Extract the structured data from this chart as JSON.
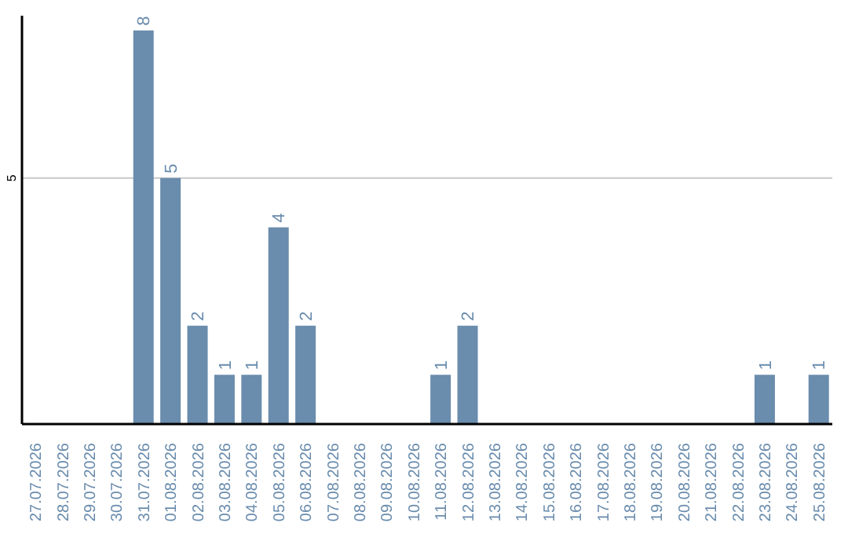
{
  "chart_data": {
    "type": "bar",
    "categories": [
      "27.07.2026",
      "28.07.2026",
      "29.07.2026",
      "30.07.2026",
      "31.07.2026",
      "01.08.2026",
      "02.08.2026",
      "03.08.2026",
      "04.08.2026",
      "05.08.2026",
      "06.08.2026",
      "07.08.2026",
      "08.08.2026",
      "09.08.2026",
      "10.08.2026",
      "11.08.2026",
      "12.08.2026",
      "13.08.2026",
      "14.08.2026",
      "15.08.2026",
      "16.08.2026",
      "17.08.2026",
      "18.08.2026",
      "19.08.2026",
      "20.08.2026",
      "21.08.2026",
      "22.08.2026",
      "23.08.2026",
      "24.08.2026",
      "25.08.2026"
    ],
    "values": [
      0,
      0,
      0,
      0,
      8,
      5,
      2,
      1,
      1,
      4,
      2,
      0,
      0,
      0,
      0,
      1,
      2,
      0,
      0,
      0,
      0,
      0,
      0,
      0,
      0,
      0,
      0,
      1,
      0,
      1
    ],
    "value_labels": [
      null,
      null,
      null,
      null,
      "8",
      "5",
      "2",
      "1",
      "1",
      "4",
      "2",
      null,
      null,
      null,
      null,
      "1",
      "2",
      null,
      null,
      null,
      null,
      null,
      null,
      null,
      null,
      null,
      null,
      "1",
      null,
      "1"
    ],
    "color": "#6a8cad",
    "ylim": [
      0,
      8.3
    ],
    "yticks": [
      5
    ],
    "grid": "y"
  }
}
